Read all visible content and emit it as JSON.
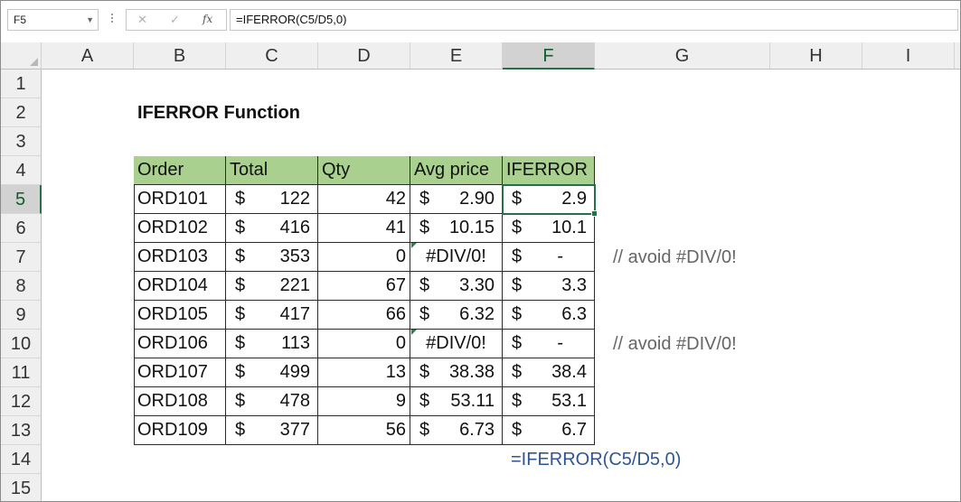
{
  "formula_bar": {
    "name_box": "F5",
    "name_box_dropdown_icon": "chevron-down-icon",
    "cancel_icon": "✕",
    "enter_icon": "✓",
    "fx_label": "fx",
    "formula": "=IFERROR(C5/D5,0)"
  },
  "columns": [
    "A",
    "B",
    "C",
    "D",
    "E",
    "F",
    "G",
    "H",
    "I"
  ],
  "selected_column": "F",
  "rows": [
    "1",
    "2",
    "3",
    "4",
    "5",
    "6",
    "7",
    "8",
    "9",
    "10",
    "11",
    "12",
    "13",
    "14",
    "15"
  ],
  "selected_row": "5",
  "title": "IFERROR Function",
  "table": {
    "headers": [
      "Order",
      "Total",
      "Qty",
      "Avg price",
      "IFERROR"
    ],
    "rows": [
      {
        "order": "ORD101",
        "cur": "$",
        "total": "122",
        "qty": "42",
        "avg_cur": "$",
        "avg": "2.90",
        "if_cur": "$",
        "iferror": "2.9"
      },
      {
        "order": "ORD102",
        "cur": "$",
        "total": "416",
        "qty": "41",
        "avg_cur": "$",
        "avg": "10.15",
        "if_cur": "$",
        "iferror": "10.1"
      },
      {
        "order": "ORD103",
        "cur": "$",
        "total": "353",
        "qty": "0",
        "avg_cur": "",
        "avg": "#DIV/0!",
        "if_cur": "$",
        "iferror": "-"
      },
      {
        "order": "ORD104",
        "cur": "$",
        "total": "221",
        "qty": "67",
        "avg_cur": "$",
        "avg": "3.30",
        "if_cur": "$",
        "iferror": "3.3"
      },
      {
        "order": "ORD105",
        "cur": "$",
        "total": "417",
        "qty": "66",
        "avg_cur": "$",
        "avg": "6.32",
        "if_cur": "$",
        "iferror": "6.3"
      },
      {
        "order": "ORD106",
        "cur": "$",
        "total": "113",
        "qty": "0",
        "avg_cur": "",
        "avg": "#DIV/0!",
        "if_cur": "$",
        "iferror": "-"
      },
      {
        "order": "ORD107",
        "cur": "$",
        "total": "499",
        "qty": "13",
        "avg_cur": "$",
        "avg": "38.38",
        "if_cur": "$",
        "iferror": "38.4"
      },
      {
        "order": "ORD108",
        "cur": "$",
        "total": "478",
        "qty": "9",
        "avg_cur": "$",
        "avg": "53.11",
        "if_cur": "$",
        "iferror": "53.1"
      },
      {
        "order": "ORD109",
        "cur": "$",
        "total": "377",
        "qty": "56",
        "avg_cur": "$",
        "avg": "6.73",
        "if_cur": "$",
        "iferror": "6.7"
      }
    ]
  },
  "notes": {
    "row7": "// avoid #DIV/0!",
    "row10": "// avoid #DIV/0!",
    "formula_display": "=IFERROR(C5/D5,0)"
  },
  "colors": {
    "header_fill": "#a9d08e",
    "selection": "#217346",
    "formula_note": "#2f5597",
    "comment": "#666666"
  }
}
